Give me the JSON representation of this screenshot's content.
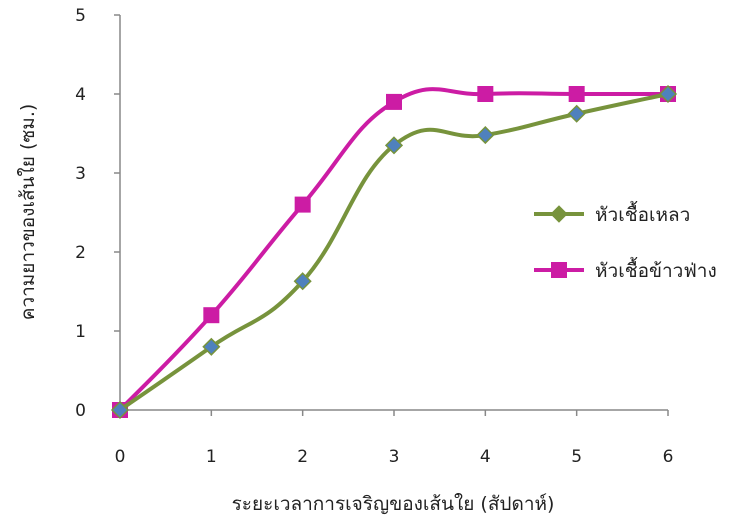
{
  "chart_data": {
    "type": "line",
    "x": [
      0,
      1,
      2,
      3,
      4,
      5,
      6
    ],
    "xlim": [
      0,
      6
    ],
    "ylim": [
      0,
      5
    ],
    "xticks": [
      "0",
      "1",
      "2",
      "3",
      "4",
      "5",
      "6"
    ],
    "yticks": [
      "0",
      "1",
      "2",
      "3",
      "4",
      "5"
    ],
    "xlabel": "ระยะเวลาการเจริญของเส้นใย (สัปดาห์)",
    "ylabel": "ความยาวของเส้นใย (ซม.)",
    "grid": false,
    "legend_position": "right",
    "series": [
      {
        "name": "หัวเชื้อเหลว",
        "values": [
          0,
          0.8,
          1.63,
          3.35,
          3.48,
          3.75,
          4.0
        ],
        "color": "#77933c",
        "marker": "diamond",
        "marker_color": "#4f81bd"
      },
      {
        "name": "หัวเชื้อข้าวฟ่าง",
        "values": [
          0,
          1.2,
          2.6,
          3.9,
          4.0,
          4.0,
          4.0
        ],
        "color": "#cc1ca4",
        "marker": "square",
        "marker_color": "#cc1ca4"
      }
    ]
  }
}
